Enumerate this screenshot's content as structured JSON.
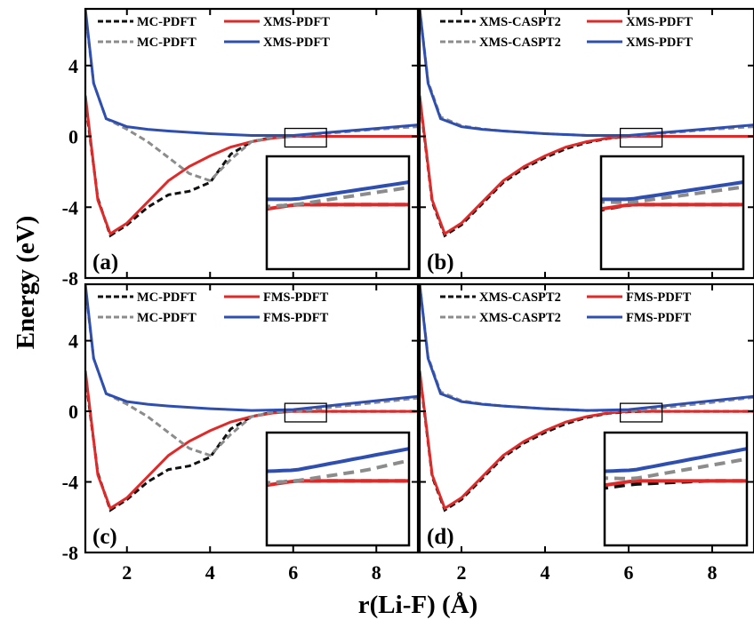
{
  "axes": {
    "ylabel": "Energy (eV)",
    "xlabel": "r(Li-F) (Å)",
    "xticks": [
      "2",
      "4",
      "6",
      "8"
    ],
    "yticks": [
      "4",
      "0",
      "-4",
      "-8"
    ]
  },
  "colors": {
    "black": "#111111",
    "gray": "#8c8c8c",
    "red": "#e02a2a",
    "blue": "#2f4fb0"
  },
  "chart_data": [
    {
      "type": "line",
      "label": "(a)",
      "xlim": [
        1,
        9
      ],
      "ylim": [
        -8,
        7.2
      ],
      "legend": [
        "MC-PDFT",
        "XMS-PDFT",
        "MC-PDFT",
        "XMS-PDFT"
      ],
      "series": [
        {
          "name": "MC-PDFT",
          "style": "dash",
          "color": "black",
          "x": [
            1.0,
            1.3,
            1.6,
            2.0,
            2.5,
            3.0,
            3.5,
            4.0,
            4.5,
            5.0,
            5.5,
            6.0,
            6.5,
            7.0,
            8.0,
            9.0
          ],
          "y": [
            2.0,
            -3.5,
            -5.6,
            -5.0,
            -4.0,
            -3.3,
            -3.1,
            -2.6,
            -1.0,
            -0.3,
            -0.05,
            0.0,
            0.0,
            0.0,
            0.0,
            0.0
          ]
        },
        {
          "name": "XMS-PDFT",
          "style": "solid",
          "color": "red",
          "x": [
            1.0,
            1.3,
            1.6,
            2.0,
            2.5,
            3.0,
            3.5,
            4.0,
            4.5,
            5.0,
            5.5,
            6.0,
            6.5,
            7.0,
            8.0,
            9.0
          ],
          "y": [
            2.3,
            -3.6,
            -5.5,
            -4.9,
            -3.7,
            -2.5,
            -1.7,
            -1.1,
            -0.6,
            -0.3,
            -0.1,
            0.0,
            0.0,
            0.0,
            0.0,
            0.0
          ]
        },
        {
          "name": "MC-PDFT",
          "style": "dash",
          "color": "gray",
          "x": [
            1.0,
            1.2,
            1.5,
            2.0,
            2.5,
            3.0,
            3.5,
            4.0,
            4.5,
            5.0,
            5.5,
            6.0,
            6.5,
            7.0,
            8.0,
            9.0
          ],
          "y": [
            7.0,
            3.0,
            1.0,
            0.4,
            -0.3,
            -1.2,
            -2.1,
            -2.5,
            -1.3,
            -0.3,
            -0.05,
            0.0,
            0.1,
            0.2,
            0.4,
            0.55
          ]
        },
        {
          "name": "XMS-PDFT",
          "style": "solid",
          "color": "blue",
          "x": [
            1.0,
            1.2,
            1.5,
            2.0,
            2.5,
            3.0,
            4.0,
            5.0,
            6.0,
            7.0,
            8.0,
            9.0
          ],
          "y": [
            7.2,
            3.0,
            1.0,
            0.55,
            0.4,
            0.3,
            0.15,
            0.05,
            0.05,
            0.25,
            0.45,
            0.65
          ]
        }
      ]
    },
    {
      "type": "line",
      "label": "(b)",
      "xlim": [
        1,
        9
      ],
      "ylim": [
        -8,
        7.2
      ],
      "legend": [
        "XMS-CASPT2",
        "XMS-PDFT",
        "XMS-CASPT2",
        "XMS-PDFT"
      ],
      "series": [
        {
          "name": "XMS-CASPT2",
          "style": "dash",
          "color": "black",
          "x": [
            1.0,
            1.3,
            1.6,
            2.0,
            2.5,
            3.0,
            3.5,
            4.0,
            4.5,
            5.0,
            5.5,
            6.0,
            6.5,
            7.0,
            8.0,
            9.0
          ],
          "y": [
            2.2,
            -3.7,
            -5.6,
            -5.0,
            -3.8,
            -2.6,
            -1.8,
            -1.2,
            -0.7,
            -0.35,
            -0.12,
            0.0,
            0.0,
            0.0,
            0.0,
            0.0
          ]
        },
        {
          "name": "XMS-PDFT",
          "style": "solid",
          "color": "red",
          "x": [
            1.0,
            1.3,
            1.6,
            2.0,
            2.5,
            3.0,
            3.5,
            4.0,
            4.5,
            5.0,
            5.5,
            6.0,
            6.5,
            7.0,
            8.0,
            9.0
          ],
          "y": [
            2.3,
            -3.6,
            -5.5,
            -4.9,
            -3.7,
            -2.5,
            -1.7,
            -1.1,
            -0.6,
            -0.3,
            -0.1,
            0.0,
            0.0,
            0.0,
            0.0,
            0.0
          ]
        },
        {
          "name": "XMS-CASPT2",
          "style": "dash",
          "color": "gray",
          "x": [
            1.0,
            1.2,
            1.5,
            2.0,
            2.5,
            3.0,
            4.0,
            5.0,
            6.0,
            7.0,
            8.0,
            9.0
          ],
          "y": [
            7.2,
            3.1,
            1.1,
            0.6,
            0.42,
            0.3,
            0.15,
            0.05,
            0.02,
            0.2,
            0.4,
            0.55
          ]
        },
        {
          "name": "XMS-PDFT",
          "style": "solid",
          "color": "blue",
          "x": [
            1.0,
            1.2,
            1.5,
            2.0,
            2.5,
            3.0,
            4.0,
            5.0,
            6.0,
            7.0,
            8.0,
            9.0
          ],
          "y": [
            7.2,
            3.0,
            1.0,
            0.55,
            0.4,
            0.3,
            0.15,
            0.05,
            0.05,
            0.25,
            0.45,
            0.65
          ]
        }
      ]
    },
    {
      "type": "line",
      "label": "(c)",
      "xlim": [
        1,
        9
      ],
      "ylim": [
        -8,
        7.2
      ],
      "legend": [
        "MC-PDFT",
        "FMS-PDFT",
        "MC-PDFT",
        "FMS-PDFT"
      ],
      "series": [
        {
          "name": "MC-PDFT",
          "style": "dash",
          "color": "black",
          "x": [
            1.0,
            1.3,
            1.6,
            2.0,
            2.5,
            3.0,
            3.5,
            4.0,
            4.5,
            5.0,
            5.5,
            6.0,
            6.5,
            7.0,
            8.0,
            9.0
          ],
          "y": [
            2.0,
            -3.5,
            -5.6,
            -5.0,
            -4.0,
            -3.3,
            -3.1,
            -2.6,
            -1.0,
            -0.3,
            -0.05,
            0.0,
            0.0,
            0.0,
            0.0,
            0.0
          ]
        },
        {
          "name": "FMS-PDFT",
          "style": "solid",
          "color": "red",
          "x": [
            1.0,
            1.3,
            1.6,
            2.0,
            2.5,
            3.0,
            3.5,
            4.0,
            4.5,
            5.0,
            5.5,
            6.0,
            6.5,
            7.0,
            8.0,
            9.0
          ],
          "y": [
            2.3,
            -3.6,
            -5.5,
            -4.9,
            -3.7,
            -2.5,
            -1.7,
            -1.1,
            -0.6,
            -0.3,
            -0.1,
            0.0,
            0.0,
            0.0,
            0.0,
            0.0
          ]
        },
        {
          "name": "MC-PDFT",
          "style": "dash",
          "color": "gray",
          "x": [
            1.0,
            1.2,
            1.5,
            2.0,
            2.5,
            3.0,
            3.5,
            4.0,
            4.5,
            5.0,
            5.5,
            6.0,
            6.5,
            7.0,
            8.0,
            9.0
          ],
          "y": [
            7.0,
            3.0,
            1.0,
            0.4,
            -0.3,
            -1.2,
            -2.1,
            -2.5,
            -1.3,
            -0.3,
            -0.05,
            0.0,
            0.1,
            0.25,
            0.5,
            0.75
          ]
        },
        {
          "name": "FMS-PDFT",
          "style": "solid",
          "color": "blue",
          "x": [
            1.0,
            1.2,
            1.5,
            2.0,
            2.5,
            3.0,
            4.0,
            5.0,
            6.0,
            7.0,
            8.0,
            9.0
          ],
          "y": [
            7.2,
            3.0,
            1.0,
            0.55,
            0.4,
            0.3,
            0.15,
            0.05,
            0.1,
            0.35,
            0.6,
            0.85
          ]
        }
      ]
    },
    {
      "type": "line",
      "label": "(d)",
      "xlim": [
        1,
        9
      ],
      "ylim": [
        -8,
        7.2
      ],
      "legend": [
        "XMS-CASPT2",
        "FMS-PDFT",
        "XMS-CASPT2",
        "FMS-PDFT"
      ],
      "series": [
        {
          "name": "XMS-CASPT2",
          "style": "dash",
          "color": "black",
          "x": [
            1.0,
            1.3,
            1.6,
            2.0,
            2.5,
            3.0,
            3.5,
            4.0,
            4.5,
            5.0,
            5.5,
            6.0,
            6.5,
            7.0,
            8.0,
            9.0
          ],
          "y": [
            2.2,
            -3.7,
            -5.6,
            -5.0,
            -3.8,
            -2.6,
            -1.8,
            -1.2,
            -0.7,
            -0.35,
            -0.12,
            -0.03,
            0.0,
            0.0,
            0.0,
            0.0
          ]
        },
        {
          "name": "FMS-PDFT",
          "style": "solid",
          "color": "red",
          "x": [
            1.0,
            1.3,
            1.6,
            2.0,
            2.5,
            3.0,
            3.5,
            4.0,
            4.5,
            5.0,
            5.5,
            6.0,
            6.5,
            7.0,
            8.0,
            9.0
          ],
          "y": [
            2.3,
            -3.6,
            -5.5,
            -4.9,
            -3.7,
            -2.5,
            -1.7,
            -1.1,
            -0.6,
            -0.3,
            -0.1,
            0.0,
            0.0,
            0.0,
            0.0,
            0.0
          ]
        },
        {
          "name": "XMS-CASPT2",
          "style": "dash",
          "color": "gray",
          "x": [
            1.0,
            1.2,
            1.5,
            2.0,
            2.5,
            3.0,
            4.0,
            5.0,
            6.0,
            7.0,
            8.0,
            9.0
          ],
          "y": [
            7.2,
            3.1,
            1.1,
            0.6,
            0.42,
            0.3,
            0.15,
            0.05,
            0.02,
            0.25,
            0.5,
            0.8
          ]
        },
        {
          "name": "FMS-PDFT",
          "style": "solid",
          "color": "blue",
          "x": [
            1.0,
            1.2,
            1.5,
            2.0,
            2.5,
            3.0,
            4.0,
            5.0,
            6.0,
            7.0,
            8.0,
            9.0
          ],
          "y": [
            7.2,
            3.0,
            1.0,
            0.55,
            0.4,
            0.3,
            0.15,
            0.05,
            0.1,
            0.35,
            0.6,
            0.85
          ]
        }
      ]
    }
  ]
}
